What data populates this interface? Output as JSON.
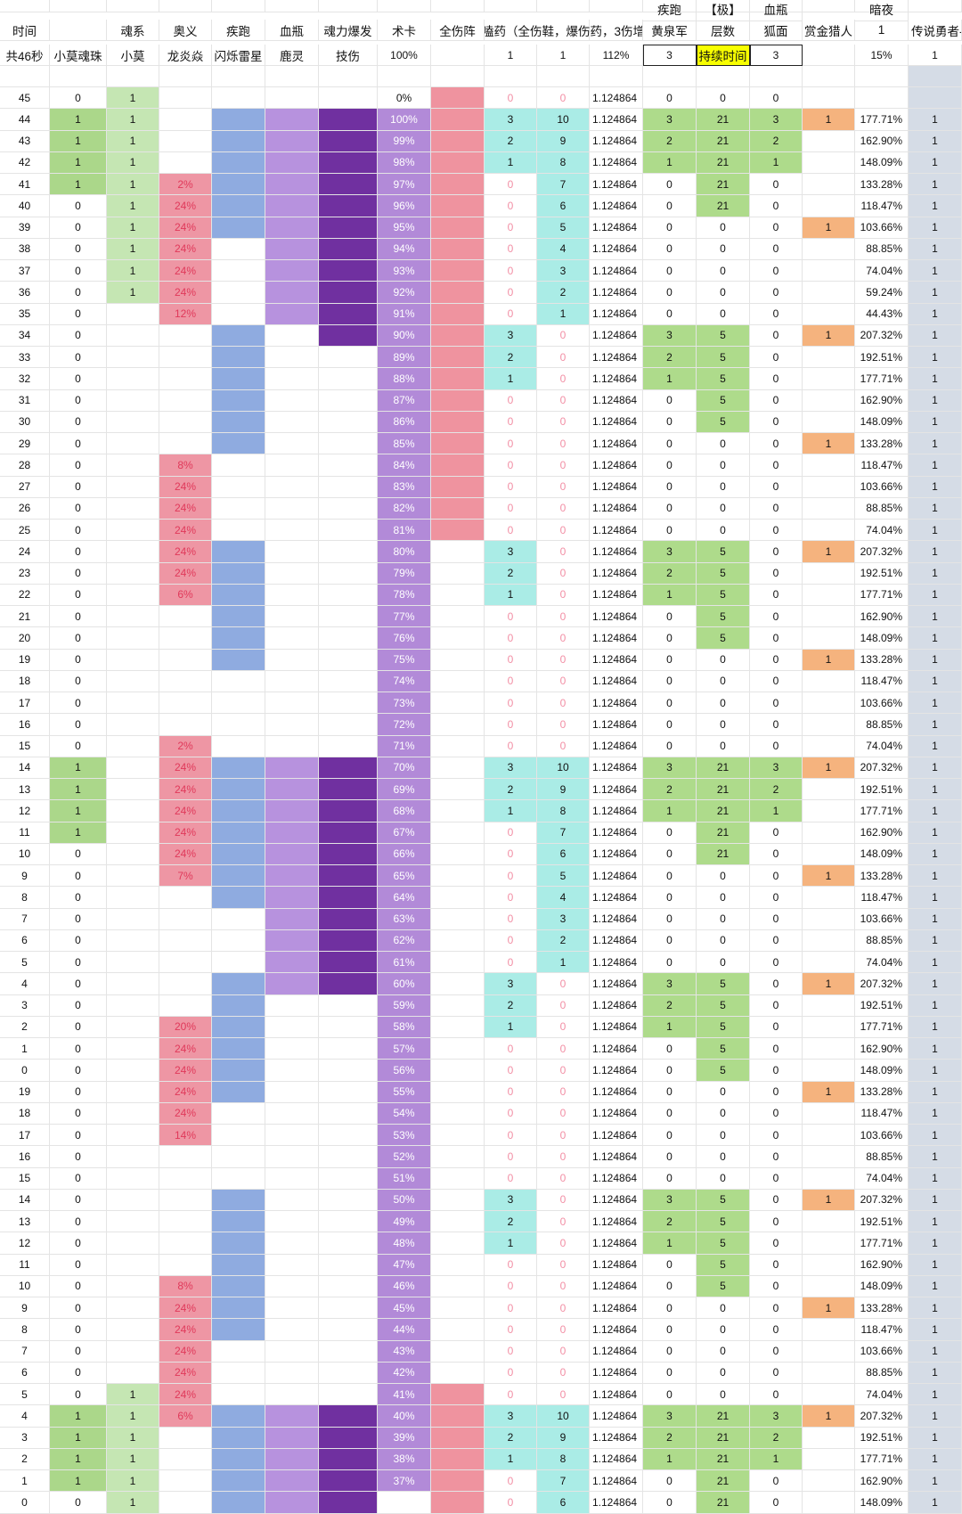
{
  "header": {
    "row1": [
      "",
      "",
      "",
      "",
      "",
      "",
      "",
      "",
      "",
      "",
      "疾跑",
      "【极】",
      "血瓶",
      "",
      "暗夜",
      ""
    ],
    "row2": [
      "时间",
      "",
      "魂系",
      "奥义",
      "疾跑",
      "血瓶",
      "魂力爆发",
      "术卡",
      "全伤阵",
      "嗑药（全伤鞋，爆伤药，3伤增",
      "",
      "黄泉军",
      "层数",
      "狐面",
      "赏金猎人",
      "1",
      "传说勇者-神"
    ],
    "row3": [
      "共46秒",
      "小莫魂珠",
      "小莫",
      "龙炎焱",
      "闪烁雷星",
      "鹿灵",
      "技伤",
      "100%",
      "",
      "1",
      "1",
      "112%",
      "3",
      "持续时间",
      "3",
      "",
      "15%",
      "1"
    ]
  },
  "colors": {
    "soul_green": "#c5e6b3",
    "orb_green": "#abd78a",
    "mystic_pink": "#ee96a4",
    "sprint_blue": "#8fabe0",
    "potion_purple": "#b792de",
    "burst_purple": "#7030a0",
    "card_purple": "#b28ad8",
    "array_pink": "#ef939f",
    "teal": "#aaece6",
    "green": "#aedb8b",
    "orange": "#f5b37e",
    "slate": "#d5dce6",
    "yellow": "#f7ff00"
  },
  "rows": [
    {
      "t": "45",
      "orb": "0",
      "soul": "1",
      "mys": "",
      "pct": "0%",
      "d1": "0",
      "d2": "0",
      "coef": "1.124864",
      "a": "0",
      "b": "0",
      "c": "0",
      "bounty": "",
      "dmg": "",
      "leg": ""
    },
    {
      "t": "44",
      "orb": "1",
      "soul": "1",
      "mys": "",
      "pct": "100%",
      "d1": "3",
      "d2": "10",
      "coef": "1.124864",
      "a": "3",
      "b": "21",
      "c": "3",
      "bounty": "1",
      "dmg": "177.71%",
      "leg": "1"
    },
    {
      "t": "43",
      "orb": "1",
      "soul": "1",
      "mys": "",
      "pct": "99%",
      "d1": "2",
      "d2": "9",
      "coef": "1.124864",
      "a": "2",
      "b": "21",
      "c": "2",
      "bounty": "",
      "dmg": "162.90%",
      "leg": "1"
    },
    {
      "t": "42",
      "orb": "1",
      "soul": "1",
      "mys": "",
      "pct": "98%",
      "d1": "1",
      "d2": "8",
      "coef": "1.124864",
      "a": "1",
      "b": "21",
      "c": "1",
      "bounty": "",
      "dmg": "148.09%",
      "leg": "1"
    },
    {
      "t": "41",
      "orb": "1",
      "soul": "1",
      "mys": "2%",
      "pct": "97%",
      "d1": "0",
      "d2": "7",
      "coef": "1.124864",
      "a": "0",
      "b": "21",
      "c": "0",
      "bounty": "",
      "dmg": "133.28%",
      "leg": "1"
    },
    {
      "t": "40",
      "orb": "0",
      "soul": "1",
      "mys": "24%",
      "pct": "96%",
      "d1": "0",
      "d2": "6",
      "coef": "1.124864",
      "a": "0",
      "b": "21",
      "c": "0",
      "bounty": "",
      "dmg": "118.47%",
      "leg": "1"
    },
    {
      "t": "39",
      "orb": "0",
      "soul": "1",
      "mys": "24%",
      "pct": "95%",
      "d1": "0",
      "d2": "5",
      "coef": "1.124864",
      "a": "0",
      "b": "0",
      "c": "0",
      "bounty": "1",
      "dmg": "103.66%",
      "leg": "1"
    },
    {
      "t": "38",
      "orb": "0",
      "soul": "1",
      "mys": "24%",
      "pct": "94%",
      "d1": "0",
      "d2": "4",
      "coef": "1.124864",
      "a": "0",
      "b": "0",
      "c": "0",
      "bounty": "",
      "dmg": "88.85%",
      "leg": "1"
    },
    {
      "t": "37",
      "orb": "0",
      "soul": "1",
      "mys": "24%",
      "pct": "93%",
      "d1": "0",
      "d2": "3",
      "coef": "1.124864",
      "a": "0",
      "b": "0",
      "c": "0",
      "bounty": "",
      "dmg": "74.04%",
      "leg": "1"
    },
    {
      "t": "36",
      "orb": "0",
      "soul": "1",
      "mys": "24%",
      "pct": "92%",
      "d1": "0",
      "d2": "2",
      "coef": "1.124864",
      "a": "0",
      "b": "0",
      "c": "0",
      "bounty": "",
      "dmg": "59.24%",
      "leg": "1"
    },
    {
      "t": "35",
      "orb": "0",
      "soul": "",
      "mys": "12%",
      "pct": "91%",
      "d1": "0",
      "d2": "1",
      "coef": "1.124864",
      "a": "0",
      "b": "0",
      "c": "0",
      "bounty": "",
      "dmg": "44.43%",
      "leg": "1"
    },
    {
      "t": "34",
      "orb": "0",
      "soul": "",
      "mys": "",
      "pct": "90%",
      "d1": "3",
      "d2": "0",
      "coef": "1.124864",
      "a": "3",
      "b": "5",
      "c": "0",
      "bounty": "1",
      "dmg": "207.32%",
      "leg": "1"
    },
    {
      "t": "33",
      "orb": "0",
      "soul": "",
      "mys": "",
      "pct": "89%",
      "d1": "2",
      "d2": "0",
      "coef": "1.124864",
      "a": "2",
      "b": "5",
      "c": "0",
      "bounty": "",
      "dmg": "192.51%",
      "leg": "1"
    },
    {
      "t": "32",
      "orb": "0",
      "soul": "",
      "mys": "",
      "pct": "88%",
      "d1": "1",
      "d2": "0",
      "coef": "1.124864",
      "a": "1",
      "b": "5",
      "c": "0",
      "bounty": "",
      "dmg": "177.71%",
      "leg": "1"
    },
    {
      "t": "31",
      "orb": "0",
      "soul": "",
      "mys": "",
      "pct": "87%",
      "d1": "0",
      "d2": "0",
      "coef": "1.124864",
      "a": "0",
      "b": "5",
      "c": "0",
      "bounty": "",
      "dmg": "162.90%",
      "leg": "1"
    },
    {
      "t": "30",
      "orb": "0",
      "soul": "",
      "mys": "",
      "pct": "86%",
      "d1": "0",
      "d2": "0",
      "coef": "1.124864",
      "a": "0",
      "b": "5",
      "c": "0",
      "bounty": "",
      "dmg": "148.09%",
      "leg": "1"
    },
    {
      "t": "29",
      "orb": "0",
      "soul": "",
      "mys": "",
      "pct": "85%",
      "d1": "0",
      "d2": "0",
      "coef": "1.124864",
      "a": "0",
      "b": "0",
      "c": "0",
      "bounty": "1",
      "dmg": "133.28%",
      "leg": "1"
    },
    {
      "t": "28",
      "orb": "0",
      "soul": "",
      "mys": "8%",
      "pct": "84%",
      "d1": "0",
      "d2": "0",
      "coef": "1.124864",
      "a": "0",
      "b": "0",
      "c": "0",
      "bounty": "",
      "dmg": "118.47%",
      "leg": "1"
    },
    {
      "t": "27",
      "orb": "0",
      "soul": "",
      "mys": "24%",
      "pct": "83%",
      "d1": "0",
      "d2": "0",
      "coef": "1.124864",
      "a": "0",
      "b": "0",
      "c": "0",
      "bounty": "",
      "dmg": "103.66%",
      "leg": "1"
    },
    {
      "t": "26",
      "orb": "0",
      "soul": "",
      "mys": "24%",
      "pct": "82%",
      "d1": "0",
      "d2": "0",
      "coef": "1.124864",
      "a": "0",
      "b": "0",
      "c": "0",
      "bounty": "",
      "dmg": "88.85%",
      "leg": "1"
    },
    {
      "t": "25",
      "orb": "0",
      "soul": "",
      "mys": "24%",
      "pct": "81%",
      "d1": "0",
      "d2": "0",
      "coef": "1.124864",
      "a": "0",
      "b": "0",
      "c": "0",
      "bounty": "",
      "dmg": "74.04%",
      "leg": "1"
    },
    {
      "t": "24",
      "orb": "0",
      "soul": "",
      "mys": "24%",
      "pct": "80%",
      "d1": "3",
      "d2": "0",
      "coef": "1.124864",
      "a": "3",
      "b": "5",
      "c": "0",
      "bounty": "1",
      "dmg": "207.32%",
      "leg": "1"
    },
    {
      "t": "23",
      "orb": "0",
      "soul": "",
      "mys": "24%",
      "pct": "79%",
      "d1": "2",
      "d2": "0",
      "coef": "1.124864",
      "a": "2",
      "b": "5",
      "c": "0",
      "bounty": "",
      "dmg": "192.51%",
      "leg": "1"
    },
    {
      "t": "22",
      "orb": "0",
      "soul": "",
      "mys": "6%",
      "pct": "78%",
      "d1": "1",
      "d2": "0",
      "coef": "1.124864",
      "a": "1",
      "b": "5",
      "c": "0",
      "bounty": "",
      "dmg": "177.71%",
      "leg": "1"
    },
    {
      "t": "21",
      "orb": "0",
      "soul": "",
      "mys": "",
      "pct": "77%",
      "d1": "0",
      "d2": "0",
      "coef": "1.124864",
      "a": "0",
      "b": "5",
      "c": "0",
      "bounty": "",
      "dmg": "162.90%",
      "leg": "1"
    },
    {
      "t": "20",
      "orb": "0",
      "soul": "",
      "mys": "",
      "pct": "76%",
      "d1": "0",
      "d2": "0",
      "coef": "1.124864",
      "a": "0",
      "b": "5",
      "c": "0",
      "bounty": "",
      "dmg": "148.09%",
      "leg": "1"
    },
    {
      "t": "19",
      "orb": "0",
      "soul": "",
      "mys": "",
      "pct": "75%",
      "d1": "0",
      "d2": "0",
      "coef": "1.124864",
      "a": "0",
      "b": "0",
      "c": "0",
      "bounty": "1",
      "dmg": "133.28%",
      "leg": "1"
    },
    {
      "t": "18",
      "orb": "0",
      "soul": "",
      "mys": "",
      "pct": "74%",
      "d1": "0",
      "d2": "0",
      "coef": "1.124864",
      "a": "0",
      "b": "0",
      "c": "0",
      "bounty": "",
      "dmg": "118.47%",
      "leg": "1"
    },
    {
      "t": "17",
      "orb": "0",
      "soul": "",
      "mys": "",
      "pct": "73%",
      "d1": "0",
      "d2": "0",
      "coef": "1.124864",
      "a": "0",
      "b": "0",
      "c": "0",
      "bounty": "",
      "dmg": "103.66%",
      "leg": "1"
    },
    {
      "t": "16",
      "orb": "0",
      "soul": "",
      "mys": "",
      "pct": "72%",
      "d1": "0",
      "d2": "0",
      "coef": "1.124864",
      "a": "0",
      "b": "0",
      "c": "0",
      "bounty": "",
      "dmg": "88.85%",
      "leg": "1"
    },
    {
      "t": "15",
      "orb": "0",
      "soul": "",
      "mys": "2%",
      "pct": "71%",
      "d1": "0",
      "d2": "0",
      "coef": "1.124864",
      "a": "0",
      "b": "0",
      "c": "0",
      "bounty": "",
      "dmg": "74.04%",
      "leg": "1"
    },
    {
      "t": "14",
      "orb": "1",
      "soul": "",
      "mys": "24%",
      "pct": "70%",
      "d1": "3",
      "d2": "10",
      "coef": "1.124864",
      "a": "3",
      "b": "21",
      "c": "3",
      "bounty": "1",
      "dmg": "207.32%",
      "leg": "1"
    },
    {
      "t": "13",
      "orb": "1",
      "soul": "",
      "mys": "24%",
      "pct": "69%",
      "d1": "2",
      "d2": "9",
      "coef": "1.124864",
      "a": "2",
      "b": "21",
      "c": "2",
      "bounty": "",
      "dmg": "192.51%",
      "leg": "1"
    },
    {
      "t": "12",
      "orb": "1",
      "soul": "",
      "mys": "24%",
      "pct": "68%",
      "d1": "1",
      "d2": "8",
      "coef": "1.124864",
      "a": "1",
      "b": "21",
      "c": "1",
      "bounty": "",
      "dmg": "177.71%",
      "leg": "1"
    },
    {
      "t": "11",
      "orb": "1",
      "soul": "",
      "mys": "24%",
      "pct": "67%",
      "d1": "0",
      "d2": "7",
      "coef": "1.124864",
      "a": "0",
      "b": "21",
      "c": "0",
      "bounty": "",
      "dmg": "162.90%",
      "leg": "1"
    },
    {
      "t": "10",
      "orb": "0",
      "soul": "",
      "mys": "24%",
      "pct": "66%",
      "d1": "0",
      "d2": "6",
      "coef": "1.124864",
      "a": "0",
      "b": "21",
      "c": "0",
      "bounty": "",
      "dmg": "148.09%",
      "leg": "1"
    },
    {
      "t": "9",
      "orb": "0",
      "soul": "",
      "mys": "7%",
      "pct": "65%",
      "d1": "0",
      "d2": "5",
      "coef": "1.124864",
      "a": "0",
      "b": "0",
      "c": "0",
      "bounty": "1",
      "dmg": "133.28%",
      "leg": "1"
    },
    {
      "t": "8",
      "orb": "0",
      "soul": "",
      "mys": "",
      "pct": "64%",
      "d1": "0",
      "d2": "4",
      "coef": "1.124864",
      "a": "0",
      "b": "0",
      "c": "0",
      "bounty": "",
      "dmg": "118.47%",
      "leg": "1"
    },
    {
      "t": "7",
      "orb": "0",
      "soul": "",
      "mys": "",
      "pct": "63%",
      "d1": "0",
      "d2": "3",
      "coef": "1.124864",
      "a": "0",
      "b": "0",
      "c": "0",
      "bounty": "",
      "dmg": "103.66%",
      "leg": "1"
    },
    {
      "t": "6",
      "orb": "0",
      "soul": "",
      "mys": "",
      "pct": "62%",
      "d1": "0",
      "d2": "2",
      "coef": "1.124864",
      "a": "0",
      "b": "0",
      "c": "0",
      "bounty": "",
      "dmg": "88.85%",
      "leg": "1"
    },
    {
      "t": "5",
      "orb": "0",
      "soul": "",
      "mys": "",
      "pct": "61%",
      "d1": "0",
      "d2": "1",
      "coef": "1.124864",
      "a": "0",
      "b": "0",
      "c": "0",
      "bounty": "",
      "dmg": "74.04%",
      "leg": "1"
    },
    {
      "t": "4",
      "orb": "0",
      "soul": "",
      "mys": "",
      "pct": "60%",
      "d1": "3",
      "d2": "0",
      "coef": "1.124864",
      "a": "3",
      "b": "5",
      "c": "0",
      "bounty": "1",
      "dmg": "207.32%",
      "leg": "1"
    },
    {
      "t": "3",
      "orb": "0",
      "soul": "",
      "mys": "",
      "pct": "59%",
      "d1": "2",
      "d2": "0",
      "coef": "1.124864",
      "a": "2",
      "b": "5",
      "c": "0",
      "bounty": "",
      "dmg": "192.51%",
      "leg": "1"
    },
    {
      "t": "2",
      "orb": "0",
      "soul": "",
      "mys": "20%",
      "pct": "58%",
      "d1": "1",
      "d2": "0",
      "coef": "1.124864",
      "a": "1",
      "b": "5",
      "c": "0",
      "bounty": "",
      "dmg": "177.71%",
      "leg": "1"
    },
    {
      "t": "1",
      "orb": "0",
      "soul": "",
      "mys": "24%",
      "pct": "57%",
      "d1": "0",
      "d2": "0",
      "coef": "1.124864",
      "a": "0",
      "b": "5",
      "c": "0",
      "bounty": "",
      "dmg": "162.90%",
      "leg": "1"
    },
    {
      "t": "0",
      "orb": "0",
      "soul": "",
      "mys": "24%",
      "pct": "56%",
      "d1": "0",
      "d2": "0",
      "coef": "1.124864",
      "a": "0",
      "b": "5",
      "c": "0",
      "bounty": "",
      "dmg": "148.09%",
      "leg": "1"
    },
    {
      "t": "19",
      "orb": "0",
      "soul": "",
      "mys": "24%",
      "pct": "55%",
      "d1": "0",
      "d2": "0",
      "coef": "1.124864",
      "a": "0",
      "b": "0",
      "c": "0",
      "bounty": "1",
      "dmg": "133.28%",
      "leg": "1"
    },
    {
      "t": "18",
      "orb": "0",
      "soul": "",
      "mys": "24%",
      "pct": "54%",
      "d1": "0",
      "d2": "0",
      "coef": "1.124864",
      "a": "0",
      "b": "0",
      "c": "0",
      "bounty": "",
      "dmg": "118.47%",
      "leg": "1"
    },
    {
      "t": "17",
      "orb": "0",
      "soul": "",
      "mys": "14%",
      "pct": "53%",
      "d1": "0",
      "d2": "0",
      "coef": "1.124864",
      "a": "0",
      "b": "0",
      "c": "0",
      "bounty": "",
      "dmg": "103.66%",
      "leg": "1"
    },
    {
      "t": "16",
      "orb": "0",
      "soul": "",
      "mys": "",
      "pct": "52%",
      "d1": "0",
      "d2": "0",
      "coef": "1.124864",
      "a": "0",
      "b": "0",
      "c": "0",
      "bounty": "",
      "dmg": "88.85%",
      "leg": "1"
    },
    {
      "t": "15",
      "orb": "0",
      "soul": "",
      "mys": "",
      "pct": "51%",
      "d1": "0",
      "d2": "0",
      "coef": "1.124864",
      "a": "0",
      "b": "0",
      "c": "0",
      "bounty": "",
      "dmg": "74.04%",
      "leg": "1"
    },
    {
      "t": "14",
      "orb": "0",
      "soul": "",
      "mys": "",
      "pct": "50%",
      "d1": "3",
      "d2": "0",
      "coef": "1.124864",
      "a": "3",
      "b": "5",
      "c": "0",
      "bounty": "1",
      "dmg": "207.32%",
      "leg": "1"
    },
    {
      "t": "13",
      "orb": "0",
      "soul": "",
      "mys": "",
      "pct": "49%",
      "d1": "2",
      "d2": "0",
      "coef": "1.124864",
      "a": "2",
      "b": "5",
      "c": "0",
      "bounty": "",
      "dmg": "192.51%",
      "leg": "1"
    },
    {
      "t": "12",
      "orb": "0",
      "soul": "",
      "mys": "",
      "pct": "48%",
      "d1": "1",
      "d2": "0",
      "coef": "1.124864",
      "a": "1",
      "b": "5",
      "c": "0",
      "bounty": "",
      "dmg": "177.71%",
      "leg": "1"
    },
    {
      "t": "11",
      "orb": "0",
      "soul": "",
      "mys": "",
      "pct": "47%",
      "d1": "0",
      "d2": "0",
      "coef": "1.124864",
      "a": "0",
      "b": "5",
      "c": "0",
      "bounty": "",
      "dmg": "162.90%",
      "leg": "1"
    },
    {
      "t": "10",
      "orb": "0",
      "soul": "",
      "mys": "8%",
      "pct": "46%",
      "d1": "0",
      "d2": "0",
      "coef": "1.124864",
      "a": "0",
      "b": "5",
      "c": "0",
      "bounty": "",
      "dmg": "148.09%",
      "leg": "1"
    },
    {
      "t": "9",
      "orb": "0",
      "soul": "",
      "mys": "24%",
      "pct": "45%",
      "d1": "0",
      "d2": "0",
      "coef": "1.124864",
      "a": "0",
      "b": "0",
      "c": "0",
      "bounty": "1",
      "dmg": "133.28%",
      "leg": "1"
    },
    {
      "t": "8",
      "orb": "0",
      "soul": "",
      "mys": "24%",
      "pct": "44%",
      "d1": "0",
      "d2": "0",
      "coef": "1.124864",
      "a": "0",
      "b": "0",
      "c": "0",
      "bounty": "",
      "dmg": "118.47%",
      "leg": "1"
    },
    {
      "t": "7",
      "orb": "0",
      "soul": "",
      "mys": "24%",
      "pct": "43%",
      "d1": "0",
      "d2": "0",
      "coef": "1.124864",
      "a": "0",
      "b": "0",
      "c": "0",
      "bounty": "",
      "dmg": "103.66%",
      "leg": "1"
    },
    {
      "t": "6",
      "orb": "0",
      "soul": "",
      "mys": "24%",
      "pct": "42%",
      "d1": "0",
      "d2": "0",
      "coef": "1.124864",
      "a": "0",
      "b": "0",
      "c": "0",
      "bounty": "",
      "dmg": "88.85%",
      "leg": "1"
    },
    {
      "t": "5",
      "orb": "0",
      "soul": "1",
      "mys": "24%",
      "pct": "41%",
      "d1": "0",
      "d2": "0",
      "coef": "1.124864",
      "a": "0",
      "b": "0",
      "c": "0",
      "bounty": "",
      "dmg": "74.04%",
      "leg": "1"
    },
    {
      "t": "4",
      "orb": "1",
      "soul": "1",
      "mys": "6%",
      "pct": "40%",
      "d1": "3",
      "d2": "10",
      "coef": "1.124864",
      "a": "3",
      "b": "21",
      "c": "3",
      "bounty": "1",
      "dmg": "207.32%",
      "leg": "1"
    },
    {
      "t": "3",
      "orb": "1",
      "soul": "1",
      "mys": "",
      "pct": "39%",
      "d1": "2",
      "d2": "9",
      "coef": "1.124864",
      "a": "2",
      "b": "21",
      "c": "2",
      "bounty": "",
      "dmg": "192.51%",
      "leg": "1"
    },
    {
      "t": "2",
      "orb": "1",
      "soul": "1",
      "mys": "",
      "pct": "38%",
      "d1": "1",
      "d2": "8",
      "coef": "1.124864",
      "a": "1",
      "b": "21",
      "c": "1",
      "bounty": "",
      "dmg": "177.71%",
      "leg": "1"
    },
    {
      "t": "1",
      "orb": "1",
      "soul": "1",
      "mys": "",
      "pct": "37%",
      "d1": "0",
      "d2": "7",
      "coef": "1.124864",
      "a": "0",
      "b": "21",
      "c": "0",
      "bounty": "",
      "dmg": "162.90%",
      "leg": "1"
    },
    {
      "t": "0",
      "orb": "0",
      "soul": "1",
      "mys": "",
      "pct": "",
      "d1": "0",
      "d2": "6",
      "coef": "1.124864",
      "a": "0",
      "b": "21",
      "c": "0",
      "bounty": "",
      "dmg": "148.09%",
      "leg": "1"
    }
  ]
}
